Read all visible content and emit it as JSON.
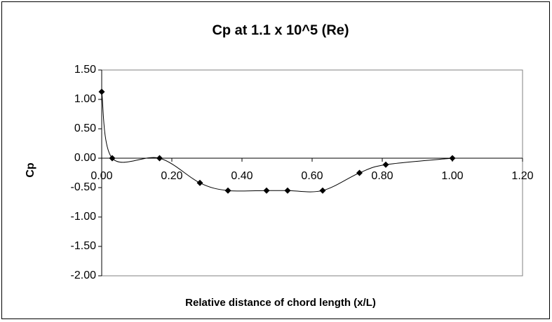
{
  "chart_data": {
    "type": "line",
    "title": "Cp at 1.1 x 10^5 (Re)",
    "x_label": "Relative distance of chord length (x/L)",
    "y_label": "Cp",
    "x": [
      0,
      0.03,
      0.165,
      0.28,
      0.36,
      0.47,
      0.53,
      0.63,
      0.735,
      0.81,
      1.0
    ],
    "series": [
      {
        "color": "#000000",
        "values": [
          1.13,
          0.0,
          0.0,
          -0.42,
          -0.55,
          -0.55,
          -0.55,
          -0.55,
          -0.25,
          -0.11,
          0.0
        ]
      }
    ],
    "xlim": [
      0,
      1.2
    ],
    "xticks": [
      {
        "value": 0,
        "label": "0.00"
      },
      {
        "value": 0.2,
        "label": "0.20"
      },
      {
        "value": 0.4,
        "label": "0.40"
      },
      {
        "value": 0.6,
        "label": "0.60"
      },
      {
        "value": 0.8,
        "label": "0.80"
      },
      {
        "value": 1.0,
        "label": "1.00"
      },
      {
        "value": 1.2,
        "label": "1.20"
      }
    ],
    "ylim": [
      -2,
      1.5
    ],
    "yticks": [
      {
        "value": 1.5,
        "label": "1.50"
      },
      {
        "value": 1.0,
        "label": "1.00"
      },
      {
        "value": 0.5,
        "label": "0.50"
      },
      {
        "value": 0,
        "label": "0.00"
      },
      {
        "value": -0.5,
        "label": "-0.50"
      },
      {
        "value": -1.0,
        "label": "-1.00"
      },
      {
        "value": -1.5,
        "label": "-1.50"
      },
      {
        "value": -2.0,
        "label": "-2.00"
      }
    ],
    "grid": false,
    "smooth": true
  }
}
